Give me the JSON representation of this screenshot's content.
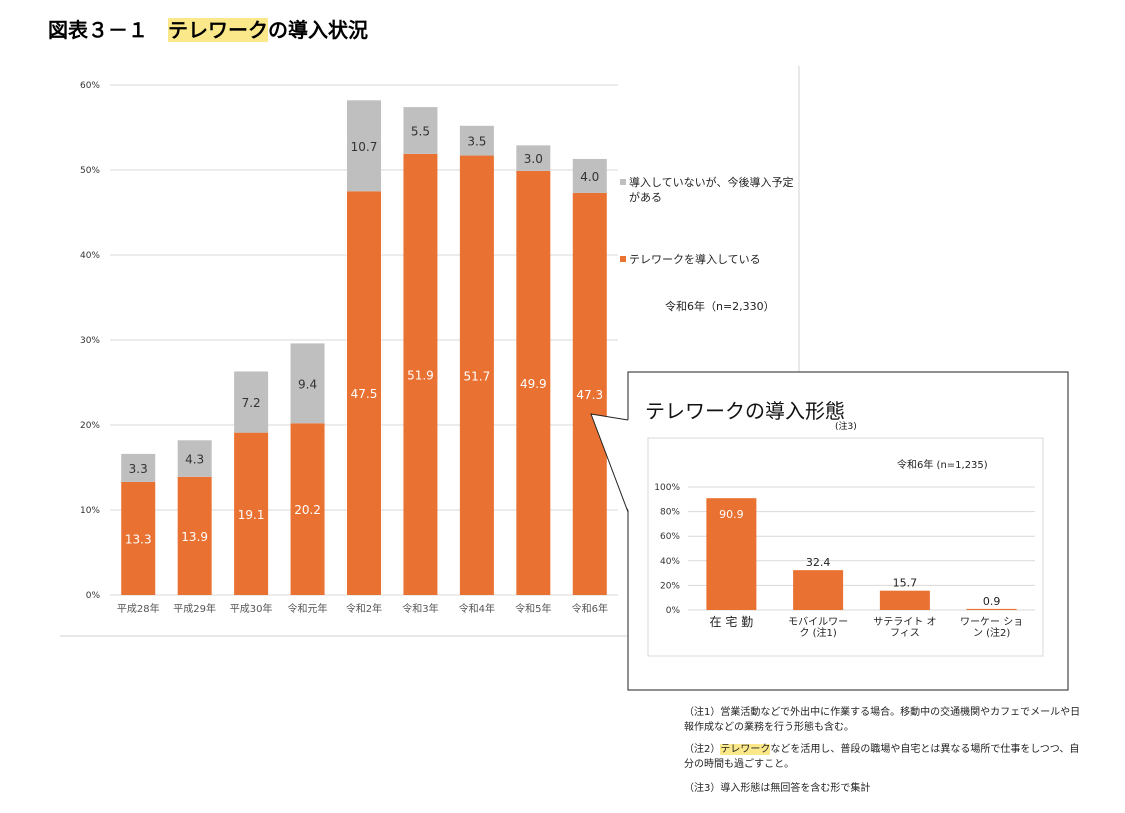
{
  "header": {
    "title_parts": [
      "図表３－１　",
      "テレワーク",
      "の導入状況"
    ]
  },
  "chart_data": [
    {
      "type": "stacked-bar",
      "categories": [
        "平成28年",
        "平成29年",
        "平成30年",
        "令和元年",
        "令和2年",
        "令和3年",
        "令和4年",
        "令和5年",
        "令和6年"
      ],
      "series": [
        {
          "name": "テレワークを導入している",
          "color": "#e97132",
          "values": [
            13.3,
            13.9,
            19.1,
            20.2,
            47.5,
            51.9,
            51.7,
            49.9,
            47.3
          ]
        },
        {
          "name": "導入していないが、今後導入予定がある",
          "color": "#bfbfbf",
          "values": [
            3.3,
            4.3,
            7.2,
            9.4,
            10.7,
            5.5,
            3.5,
            3.0,
            4.0
          ],
          "value_labels": [
            "3.3",
            "4.3",
            "7.2",
            "9.4",
            "10.7",
            "5.5",
            "3.5",
            "3.0",
            "4.0"
          ]
        }
      ],
      "ylim": [
        0,
        60
      ],
      "yticks": [
        {
          "value": 0,
          "label": "0%"
        },
        {
          "value": 10,
          "label": "10%"
        },
        {
          "value": 20,
          "label": "20%"
        },
        {
          "value": 30,
          "label": "30%"
        },
        {
          "value": 40,
          "label": "40%"
        },
        {
          "value": 50,
          "label": "50%"
        },
        {
          "value": 60,
          "label": "60%"
        }
      ],
      "grid": true,
      "annotation": "令和6年（n=2,330）"
    },
    {
      "type": "bar",
      "title": "テレワークの導入形態",
      "title_note": "(注3)",
      "annotation": "令和6年 (n=1,235)",
      "categories": [
        "在 宅 勤",
        "モバイルワーク (注1)",
        "サテライト オフィス",
        "ワーケー ション (注2)"
      ],
      "values": [
        90.9,
        32.4,
        15.7,
        0.9
      ],
      "color": "#e97132",
      "ylim": [
        0,
        100
      ],
      "yticks": [
        {
          "value": 0,
          "label": "0%"
        },
        {
          "value": 20,
          "label": "20%"
        },
        {
          "value": 40,
          "label": "40%"
        },
        {
          "value": 60,
          "label": "60%"
        },
        {
          "value": 80,
          "label": "80%"
        },
        {
          "value": 100,
          "label": "100%"
        }
      ],
      "grid": true
    }
  ],
  "notes": [
    {
      "parts": [
        "（注1）営業活動などで外出中に作業する場合。移動中の交通機関やカフェでメールや日報作成などの業務を行う形態も含む。"
      ]
    },
    {
      "parts": [
        "（注2）",
        "テレワーク",
        "などを活用し、普段の職場や自宅とは異なる場所で仕事をしつつ、自分の時間も過ごすこと。"
      ]
    },
    {
      "parts": [
        "（注3）導入形態は無回答を含む形で集計"
      ]
    }
  ]
}
